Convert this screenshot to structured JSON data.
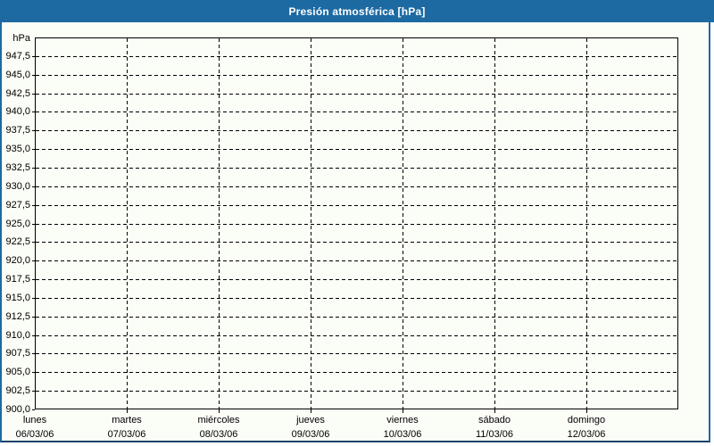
{
  "chart_data": {
    "type": "line",
    "title": "Presión atmosférica [hPa]",
    "ylabel": "hPa",
    "xlabel": "",
    "ylim": [
      900,
      950
    ],
    "ytick_step": 2.5,
    "decimal_separator": ",",
    "grid": "dashed",
    "legend_position": "none",
    "ytick_values": [
      947.5,
      945,
      942.5,
      940,
      937.5,
      935,
      932.5,
      930,
      927.5,
      925,
      922.5,
      920,
      917.5,
      915,
      912.5,
      910,
      907.5,
      905,
      902.5,
      900
    ],
    "ytick_labels": [
      "947,5",
      "945,0",
      "942,5",
      "940,0",
      "937,5",
      "935,0",
      "932,5",
      "930,0",
      "927,5",
      "925,0",
      "922,5",
      "920,0",
      "917,5",
      "915,0",
      "912,5",
      "910,0",
      "907,5",
      "905,0",
      "902,5",
      "900,0"
    ],
    "categories": [
      {
        "day": "lunes",
        "date": "06/03/06"
      },
      {
        "day": "martes",
        "date": "07/03/06"
      },
      {
        "day": "miércoles",
        "date": "08/03/06"
      },
      {
        "day": "jueves",
        "date": "09/03/06"
      },
      {
        "day": "viernes",
        "date": "10/03/06"
      },
      {
        "day": "sábado",
        "date": "11/03/06"
      },
      {
        "day": "domingo",
        "date": "12/03/06"
      }
    ],
    "series": []
  },
  "colors": {
    "header_bg": "#1d6aa3",
    "header_text": "#ffffff",
    "frame_border": "#1d6aa3",
    "frame_bottom_border": "#15426b",
    "plot_border": "#000000",
    "grid_color": "#000000",
    "page_bg": "#fbfdf7",
    "label_color": "#000000"
  }
}
